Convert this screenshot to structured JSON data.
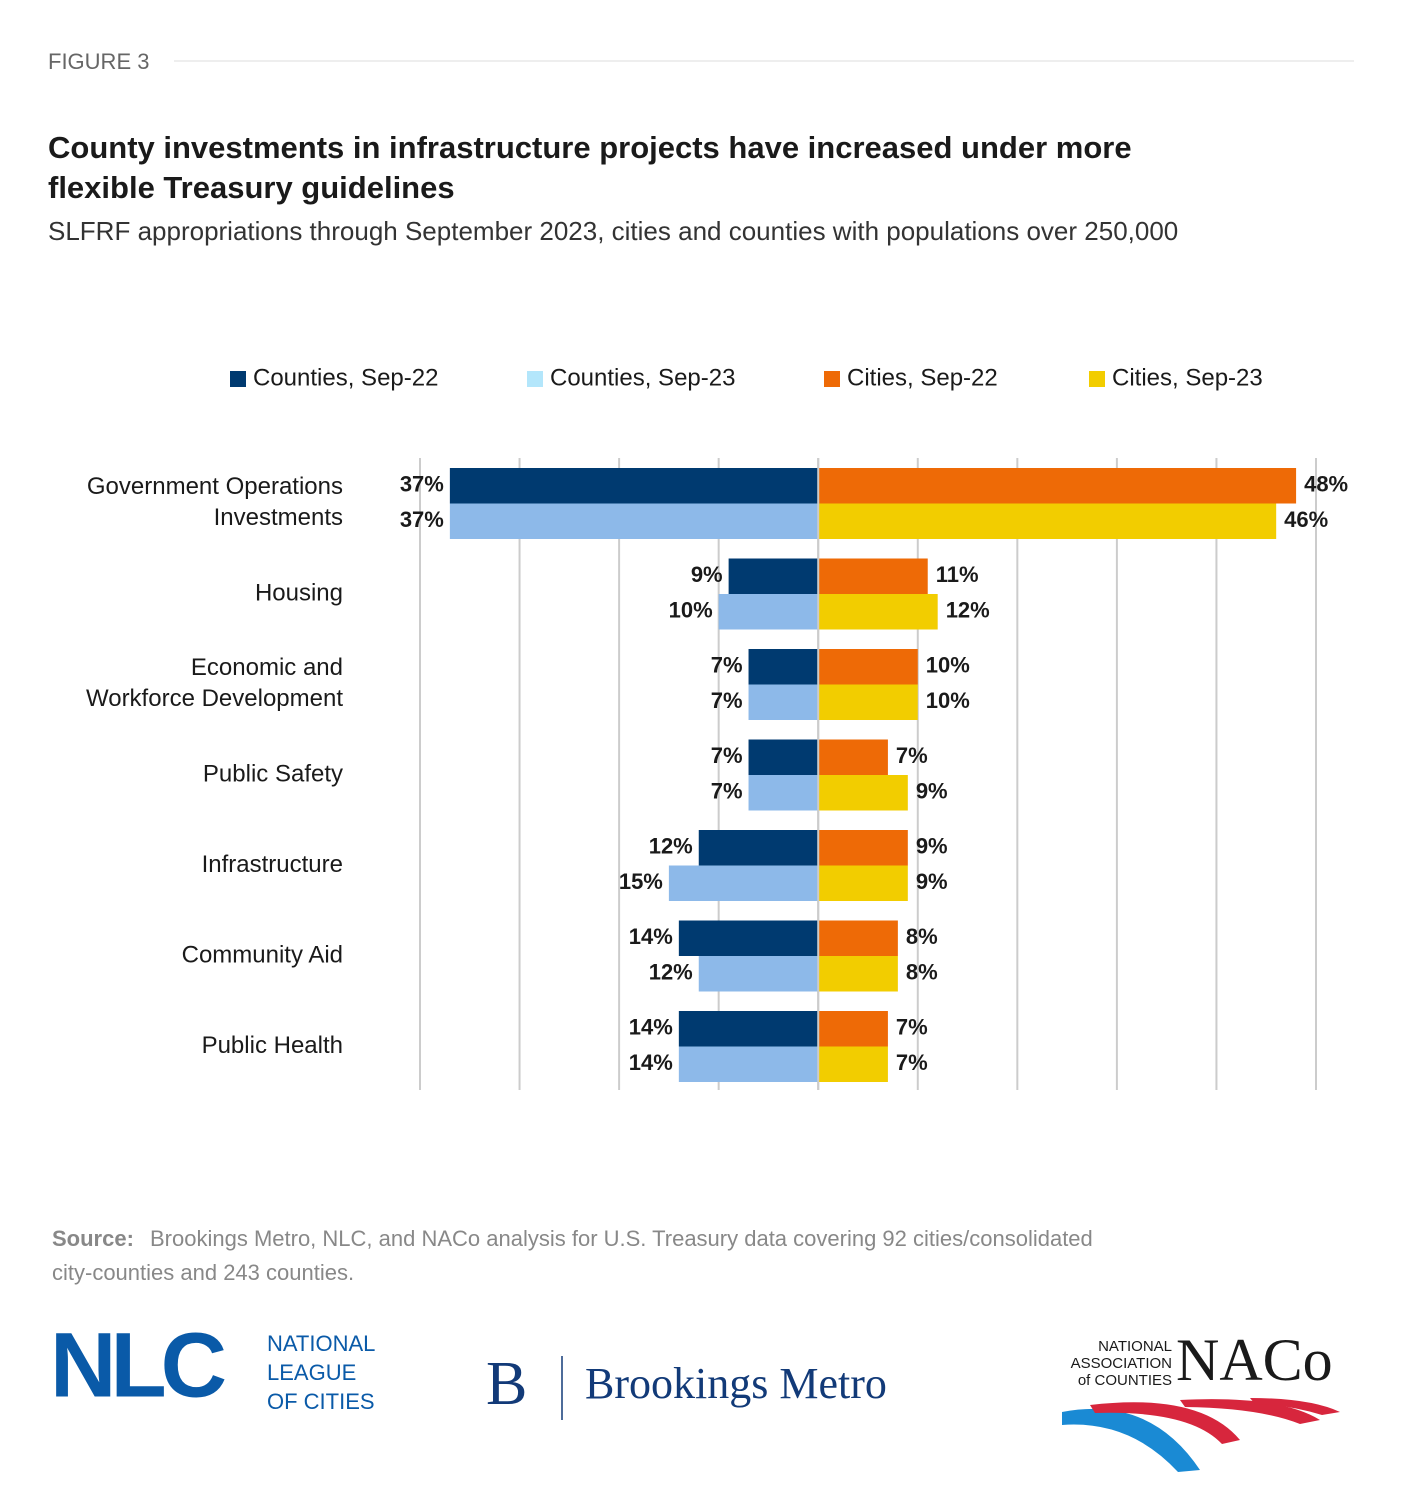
{
  "header": {
    "figure": "FIGURE 3"
  },
  "chart_data": {
    "type": "diverging-bar",
    "title": "County investments in infrastructure projects have increased under more\nflexible Treasury guidelines",
    "subtitle": "SLFRF appropriations through September 2023, cities and counties with populations over 250,000",
    "categories": [
      "Government Operations\nInvestments",
      "Housing",
      "Economic and\nWorkforce Development",
      "Public Safety",
      "Infrastructure",
      "Community Aid",
      "Public Health"
    ],
    "series": [
      {
        "name": "Counties, Sep-22",
        "color": "#003a70",
        "legend_color": "#003a70",
        "side": "left",
        "values": [
          37,
          9,
          7,
          7,
          12,
          14,
          14
        ],
        "value_labels": [
          "37%",
          "9%",
          "7%",
          "7%",
          "12%",
          "14%",
          "14%"
        ]
      },
      {
        "name": "Counties, Sep-23",
        "color": "#8db9e9",
        "legend_color": "#b3e6fb",
        "side": "left",
        "values": [
          37,
          10,
          7,
          7,
          15,
          12,
          14
        ],
        "value_labels": [
          "37%",
          "10%",
          "7%",
          "7%",
          "15%",
          "12%",
          "14%"
        ]
      },
      {
        "name": "Cities, Sep-22",
        "color": "#ee6a06",
        "legend_color": "#ee6a06",
        "side": "right",
        "values": [
          48,
          11,
          10,
          7,
          9,
          8,
          7
        ],
        "value_labels": [
          "48%",
          "11%",
          "10%",
          "7%",
          "9%",
          "8%",
          "7%"
        ]
      },
      {
        "name": "Cities, Sep-23",
        "color": "#f2cd00",
        "legend_color": "#f2cd00",
        "side": "right",
        "values": [
          46,
          12,
          10,
          9,
          9,
          8,
          7
        ],
        "value_labels": [
          "46%",
          "12%",
          "10%",
          "9%",
          "9%",
          "8%",
          "7%"
        ]
      }
    ],
    "xlim": [
      -40,
      50
    ],
    "xticks": [
      -40,
      -30,
      -20,
      -10,
      0,
      10,
      20,
      30,
      40,
      50
    ],
    "grid": true,
    "source_label": "Source:",
    "source": "Brookings Metro, NLC, and NACo analysis for U.S. Treasury data covering 92 cities/consolidated\ncity-counties and 243 counties."
  },
  "logos": {
    "nlc": "NLC",
    "nlc_name": "NATIONAL\nLEAGUE\nOF CITIES",
    "brookings_mark": "B",
    "brookings": "Brookings Metro",
    "naco_name": "NATIONAL\nASSOCIATION\nof COUNTIES",
    "naco": "NACo"
  }
}
